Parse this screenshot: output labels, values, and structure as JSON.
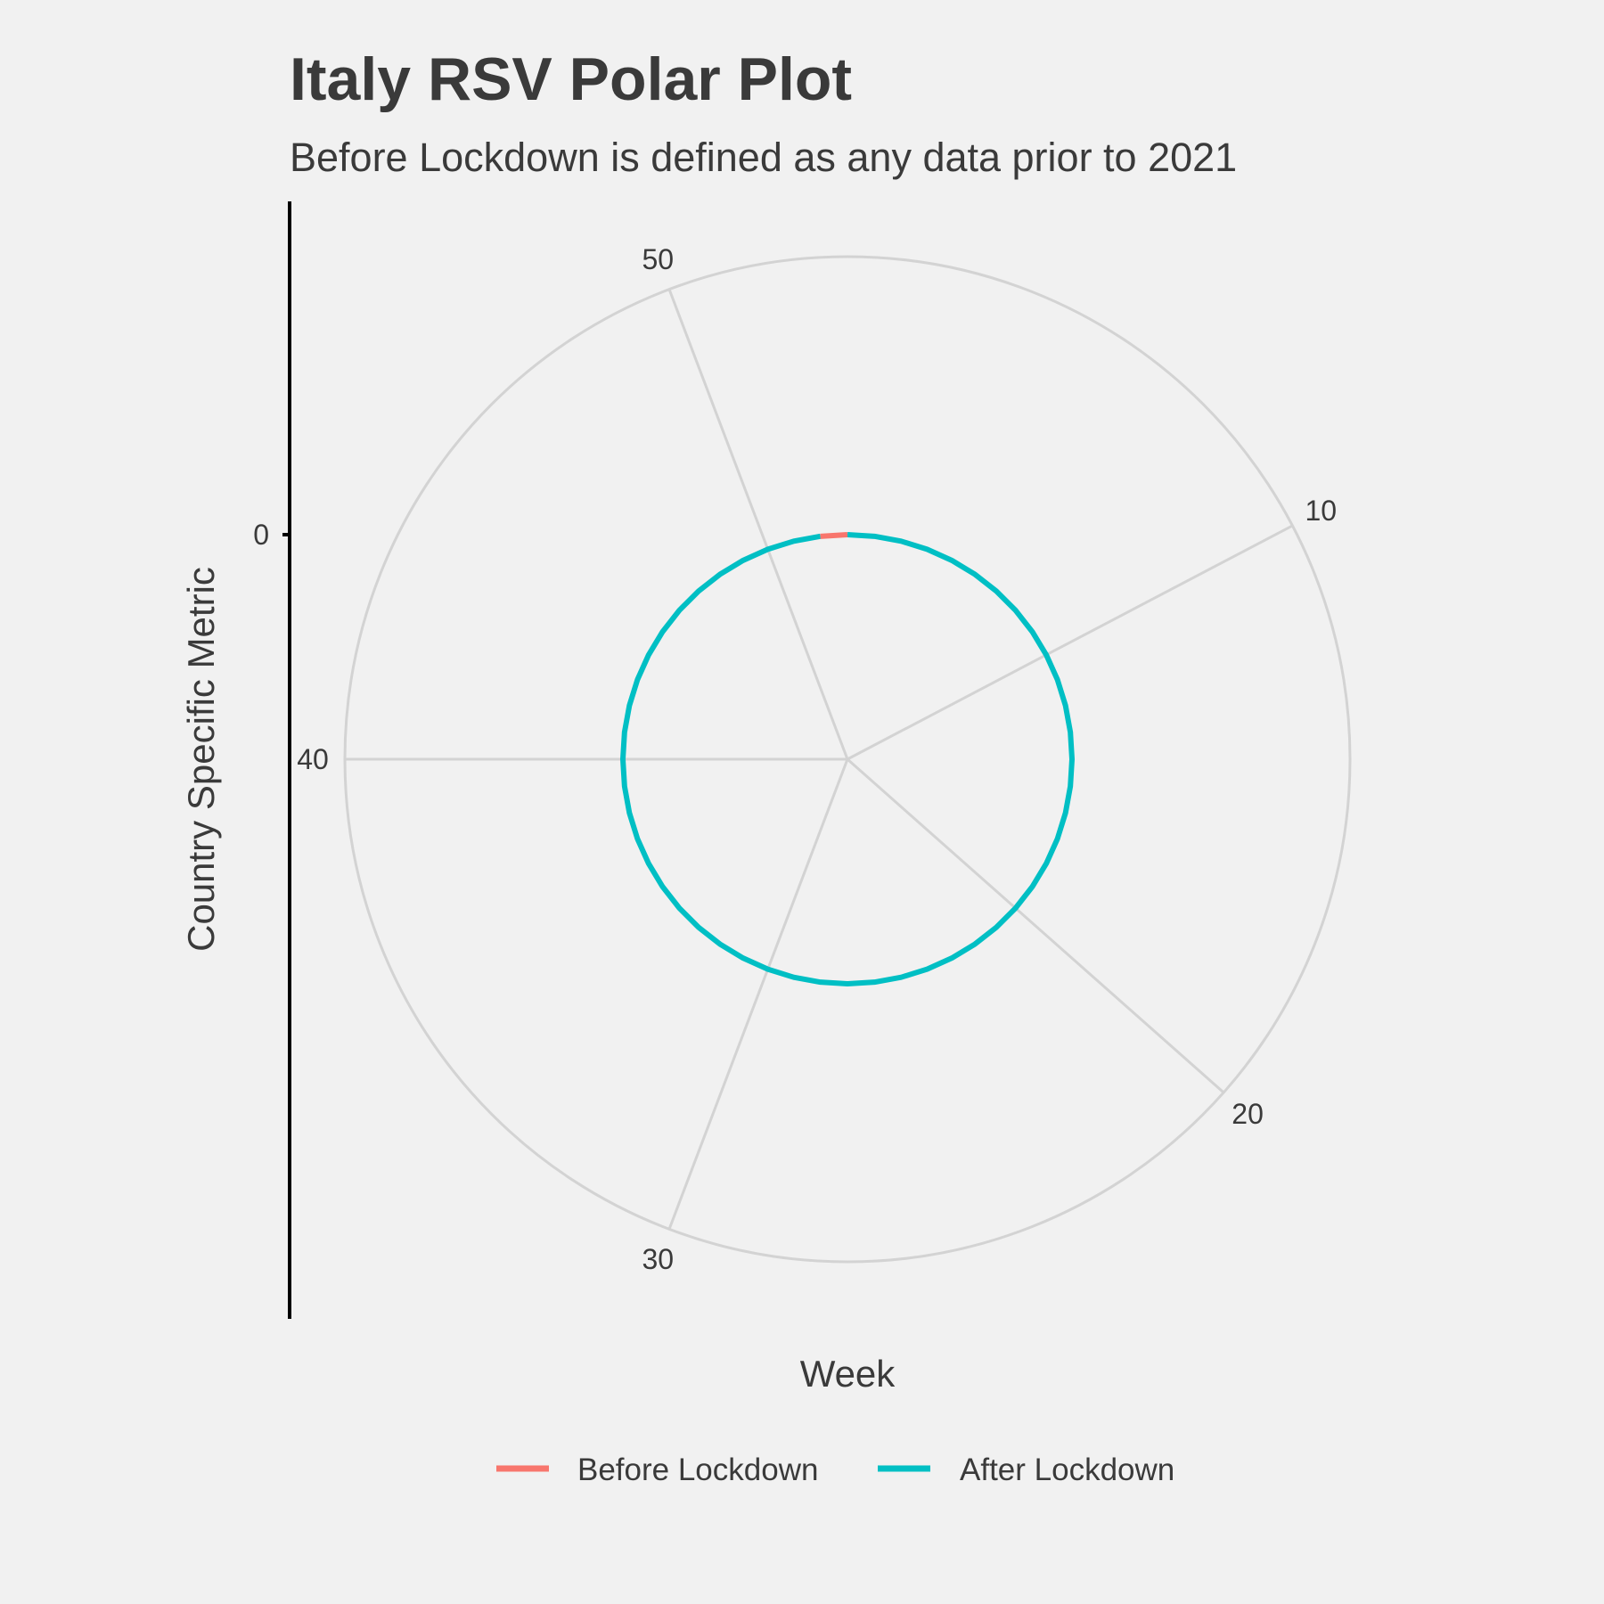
{
  "chart_data": {
    "type": "line",
    "coordinate_system": "polar",
    "title": "Italy RSV Polar Plot",
    "subtitle": "Before Lockdown is defined as any data prior to 2021",
    "xlabel": "Week",
    "ylabel": "Country Specific Metric",
    "theta_ticks": [
      "10",
      "20",
      "30",
      "40",
      "50"
    ],
    "theta_tick_values": [
      10,
      20,
      30,
      40,
      50
    ],
    "theta_range": [
      1,
      53
    ],
    "r_ticks": [
      "0"
    ],
    "r_tick_values": [
      0
    ],
    "grid": true,
    "legend_position": "bottom",
    "series": [
      {
        "name": "Before Lockdown",
        "color": "#F8766D",
        "x": [
          52,
          53,
          1
        ],
        "y": [
          0,
          0,
          0
        ]
      },
      {
        "name": "After Lockdown",
        "color": "#00BFC4",
        "x": [
          1,
          2,
          3,
          4,
          5,
          6,
          7,
          8,
          9,
          10,
          11,
          12,
          13,
          14,
          15,
          16,
          17,
          18,
          19,
          20,
          21,
          22,
          23,
          24,
          25,
          26,
          27,
          28,
          29,
          30,
          31,
          32,
          33,
          34,
          35,
          36,
          37,
          38,
          39,
          40,
          41,
          42,
          43,
          44,
          45,
          46,
          47,
          48,
          49,
          50,
          51,
          52
        ],
        "y": [
          0,
          0,
          0,
          0,
          0,
          0,
          0,
          0,
          0,
          0,
          0,
          0,
          0,
          0,
          0,
          0,
          0,
          0,
          0,
          0,
          0,
          0,
          0,
          0,
          0,
          0,
          0,
          0,
          0,
          0,
          0,
          0,
          0,
          0,
          0,
          0,
          0,
          0,
          0,
          0,
          0,
          0,
          0,
          0,
          0,
          0,
          0,
          0,
          0,
          0,
          0,
          0
        ]
      }
    ]
  }
}
